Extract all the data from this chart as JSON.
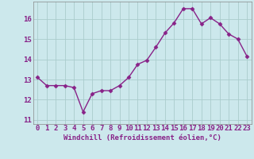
{
  "x": [
    0,
    1,
    2,
    3,
    4,
    5,
    6,
    7,
    8,
    9,
    10,
    11,
    12,
    13,
    14,
    15,
    16,
    17,
    18,
    19,
    20,
    21,
    22,
    23
  ],
  "y": [
    13.1,
    12.7,
    12.7,
    12.7,
    12.6,
    11.4,
    12.3,
    12.45,
    12.45,
    12.7,
    13.1,
    13.75,
    13.95,
    14.6,
    15.3,
    15.8,
    16.5,
    16.5,
    15.75,
    16.05,
    15.75,
    15.25,
    15.0,
    14.15
  ],
  "line_color": "#882288",
  "marker": "D",
  "marker_size": 2.5,
  "bg_color": "#cce8ec",
  "grid_color": "#aacccc",
  "xlabel": "Windchill (Refroidissement éolien,°C)",
  "xlabel_fontsize": 6.5,
  "xtick_labels": [
    "0",
    "1",
    "2",
    "3",
    "4",
    "5",
    "6",
    "7",
    "8",
    "9",
    "10",
    "11",
    "12",
    "13",
    "14",
    "15",
    "16",
    "17",
    "18",
    "19",
    "20",
    "21",
    "22",
    "23"
  ],
  "ytick_labels": [
    "11",
    "12",
    "13",
    "14",
    "15",
    "16"
  ],
  "ylim": [
    10.8,
    16.85
  ],
  "xlim": [
    -0.5,
    23.5
  ],
  "tick_fontsize": 6.5,
  "tick_color": "#882288",
  "spine_color": "#888888",
  "linewidth": 1.0
}
